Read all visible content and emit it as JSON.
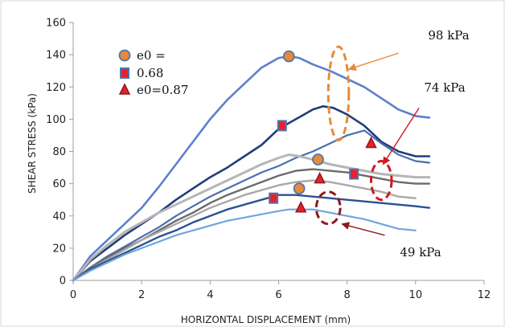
{
  "chart_data": {
    "type": "line",
    "xlabel": "HORIZONTAL DISPLACEMENT (mm)",
    "ylabel": "SHEAR STRESS (kPa)",
    "xlim": [
      0,
      12
    ],
    "ylim": [
      0,
      160
    ],
    "xticks": [
      0,
      2,
      4,
      6,
      8,
      10,
      12
    ],
    "yticks": [
      0,
      20,
      40,
      60,
      80,
      100,
      120,
      140,
      160
    ],
    "grid": false,
    "legend": {
      "placement": "top-left",
      "entries": [
        {
          "label": "e0 =",
          "marker": "circle",
          "fill": "#E98A36",
          "stroke": "#4F74B2"
        },
        {
          "label": "0.68",
          "marker": "square",
          "fill": "#E8202A",
          "stroke": "#4F74B2"
        },
        {
          "label": "e0=0.87",
          "marker": "triangle",
          "fill": "#E8202A",
          "stroke": "#8B1A1A"
        }
      ]
    },
    "series": [
      {
        "color": "#5B80CC",
        "width": 2.6,
        "x": [
          0,
          0.5,
          1,
          1.5,
          2,
          2.5,
          3,
          3.5,
          4,
          4.5,
          5,
          5.5,
          6,
          6.3,
          6.6,
          7,
          7.5,
          8,
          8.5,
          9,
          9.5,
          10,
          10.4
        ],
        "y": [
          0,
          15,
          25,
          35,
          45,
          58,
          72,
          86,
          100,
          112,
          122,
          132,
          138,
          139,
          138,
          134,
          130,
          125,
          120,
          113,
          106,
          102,
          101
        ]
      },
      {
        "color": "#1F3F77",
        "width": 2.6,
        "x": [
          0,
          0.5,
          1,
          1.5,
          2,
          2.5,
          3,
          3.5,
          4,
          4.5,
          5,
          5.5,
          6,
          6.5,
          7,
          7.3,
          7.6,
          8,
          8.5,
          9,
          9.5,
          10,
          10.4
        ],
        "y": [
          0,
          12,
          20,
          28,
          35,
          42,
          50,
          57,
          64,
          70,
          77,
          84,
          94,
          100,
          106,
          108,
          107,
          103,
          96,
          86,
          80,
          77,
          77
        ]
      },
      {
        "color": "#4C6EAE",
        "width": 2.2,
        "x": [
          0,
          0.5,
          1,
          1.5,
          2,
          2.5,
          3,
          3.5,
          4,
          4.5,
          5,
          5.5,
          6,
          6.5,
          7,
          7.5,
          8,
          8.5,
          9,
          9.5,
          10,
          10.4
        ],
        "y": [
          0,
          8,
          15,
          21,
          27,
          33,
          40,
          46,
          52,
          57,
          62,
          67,
          71,
          76,
          80,
          85,
          90,
          93,
          85,
          78,
          74,
          73
        ]
      },
      {
        "color": "#B6B6B6",
        "width": 3,
        "x": [
          0,
          0.5,
          1,
          1.5,
          2,
          2.5,
          3,
          3.5,
          4,
          4.5,
          5,
          5.5,
          6,
          6.3,
          6.6,
          7,
          7.5,
          8,
          8.5,
          9,
          9.5,
          10,
          10.4
        ],
        "y": [
          0,
          13,
          22,
          30,
          36,
          42,
          47,
          52,
          57,
          62,
          67,
          72,
          76,
          78,
          77,
          75,
          72,
          70,
          68,
          66,
          65,
          64,
          64
        ]
      },
      {
        "color": "#6B6B6B",
        "width": 2.4,
        "x": [
          0,
          0.5,
          1,
          1.5,
          2,
          2.5,
          3,
          3.5,
          4,
          4.5,
          5,
          5.5,
          6,
          6.5,
          7,
          7.5,
          8,
          8.5,
          9,
          9.5,
          10,
          10.4
        ],
        "y": [
          0,
          8,
          14,
          20,
          25,
          31,
          37,
          42,
          48,
          53,
          57,
          61,
          65,
          68,
          69,
          68,
          67,
          65,
          63,
          61,
          60,
          60
        ]
      },
      {
        "color": "#A9A9A9",
        "width": 2.4,
        "x": [
          0,
          0.5,
          1,
          1.5,
          2,
          2.5,
          3,
          3.5,
          4,
          4.5,
          5,
          5.5,
          6,
          6.5,
          7,
          7.5,
          8,
          8.5,
          9,
          9.5,
          10
        ],
        "y": [
          0,
          7,
          13,
          19,
          25,
          30,
          35,
          40,
          45,
          49,
          53,
          56,
          59,
          61,
          62,
          61,
          59,
          57,
          55,
          52,
          51
        ]
      },
      {
        "color": "#2B5193",
        "width": 2.4,
        "x": [
          0,
          0.5,
          1,
          1.5,
          2,
          2.5,
          3,
          3.5,
          4,
          4.5,
          5,
          5.5,
          6,
          6.5,
          7,
          7.5,
          8,
          8.5,
          9,
          9.5,
          10,
          10.4
        ],
        "y": [
          0,
          7,
          12,
          17,
          22,
          27,
          31,
          36,
          40,
          44,
          47,
          50,
          53,
          53,
          52,
          51,
          50,
          49,
          48,
          47,
          46,
          45
        ]
      },
      {
        "color": "#6FA6DC",
        "width": 2.2,
        "x": [
          0,
          0.5,
          1,
          1.5,
          2,
          2.5,
          3,
          3.5,
          4,
          4.5,
          5,
          5.5,
          6,
          6.3,
          6.6,
          7,
          7.5,
          8,
          8.5,
          9,
          9.5,
          10
        ],
        "y": [
          0,
          6,
          11,
          16,
          20,
          24,
          28,
          31,
          34,
          37,
          39,
          41,
          43,
          44,
          44,
          44,
          42,
          40,
          38,
          35,
          32,
          31
        ]
      }
    ],
    "markers": [
      {
        "shape": "circle",
        "x": 6.3,
        "y": 139
      },
      {
        "shape": "circle",
        "x": 7.15,
        "y": 75
      },
      {
        "shape": "circle",
        "x": 6.6,
        "y": 57
      },
      {
        "shape": "square",
        "x": 6.1,
        "y": 96
      },
      {
        "shape": "square",
        "x": 8.2,
        "y": 66
      },
      {
        "shape": "square",
        "x": 5.85,
        "y": 51
      },
      {
        "shape": "triangle",
        "x": 8.7,
        "y": 85
      },
      {
        "shape": "triangle",
        "x": 7.2,
        "y": 63
      },
      {
        "shape": "triangle",
        "x": 6.65,
        "y": 45
      }
    ],
    "annotations": [
      {
        "text": "98 kPa",
        "color": "#E98A36",
        "ellipse_center": [
          7.75,
          116
        ],
        "ellipse_radii": [
          0.3,
          29
        ],
        "arrow_from": [
          9.5,
          141
        ],
        "arrow_to": [
          8.05,
          131
        ]
      },
      {
        "text": "74 kPa",
        "color": "#D0181E",
        "ellipse_center": [
          9.0,
          62
        ],
        "ellipse_radii": [
          0.3,
          12
        ],
        "arrow_from": [
          10.1,
          107
        ],
        "arrow_to": [
          9.05,
          72
        ]
      },
      {
        "text": "49 kPa",
        "color": "#8B1A1A",
        "ellipse_center": [
          7.45,
          45
        ],
        "ellipse_radii": [
          0.35,
          10
        ],
        "arrow_from": [
          9.1,
          28
        ],
        "arrow_to": [
          7.85,
          35
        ]
      }
    ],
    "annotation_labels": [
      "98 kPa",
      "74 kPa",
      "49 kPa"
    ]
  }
}
